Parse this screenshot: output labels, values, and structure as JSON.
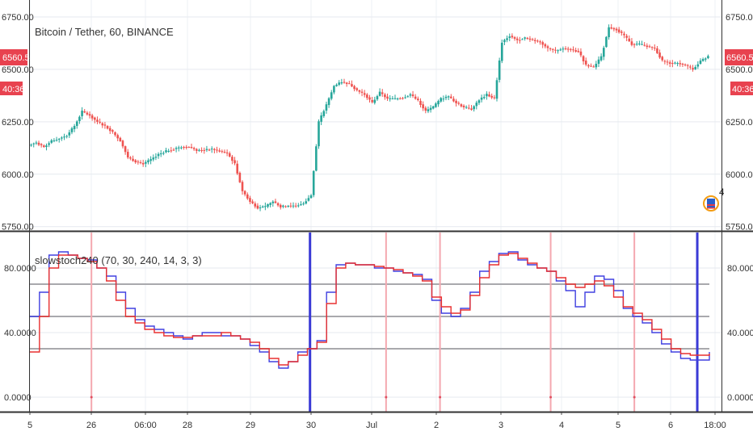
{
  "chart_data": [
    {
      "type": "candlestick",
      "title": "Bitcoin / Tether, 60, BINANCE",
      "ylim": [
        5730,
        6800
      ],
      "y_ticks": [
        "6750.00",
        "6500.00",
        "6250.00",
        "6000.00",
        "5750.00"
      ],
      "y_tick_values": [
        6750,
        6500,
        6250,
        6000,
        5750
      ],
      "last_price": "6560.52",
      "countdown": "40:36",
      "grid": true,
      "colors": {
        "up": "#26a69a",
        "down": "#ef5350",
        "tag": "#e8424f"
      },
      "close_series": [
        6150,
        6130,
        6160,
        6170,
        6185,
        6230,
        6300,
        6280,
        6250,
        6230,
        6200,
        6160,
        6080,
        6060,
        6050,
        6070,
        6095,
        6110,
        6120,
        6130,
        6130,
        6115,
        6115,
        6120,
        6110,
        6100,
        6050,
        5920,
        5870,
        5840,
        5845,
        5870,
        5845,
        5850,
        5850,
        5860,
        5900,
        6250,
        6330,
        6420,
        6440,
        6430,
        6400,
        6380,
        6340,
        6390,
        6360,
        6360,
        6365,
        6380,
        6350,
        6300,
        6320,
        6360,
        6370,
        6340,
        6320,
        6310,
        6355,
        6380,
        6360,
        6630,
        6660,
        6640,
        6650,
        6640,
        6630,
        6600,
        6590,
        6600,
        6595,
        6585,
        6520,
        6510,
        6560,
        6700,
        6690,
        6660,
        6620,
        6620,
        6610,
        6600,
        6540,
        6530,
        6530,
        6520,
        6500,
        6540,
        6560
      ]
    },
    {
      "type": "line",
      "title": "slowstoch240 (70, 30, 240, 14, 3, 3)",
      "ylim": [
        -5,
        100
      ],
      "y_ticks": [
        "80.0000",
        "40.0000",
        "0.0000"
      ],
      "y_tick_values": [
        80,
        40,
        0
      ],
      "levels": [
        70,
        50,
        30
      ],
      "x_ticks": [
        "5",
        "26",
        "06:00",
        "28",
        "29",
        "30",
        "Jul",
        "2",
        "3",
        "4",
        "5",
        "6",
        "18:00"
      ],
      "series": [
        {
          "color": "#4040e0",
          "values": [
            50,
            65,
            88,
            90,
            88,
            86,
            85,
            80,
            75,
            65,
            55,
            48,
            44,
            42,
            40,
            38,
            36,
            38,
            40,
            40,
            38,
            38,
            36,
            32,
            28,
            22,
            18,
            22,
            28,
            30,
            35,
            65,
            82,
            83,
            82,
            82,
            80,
            80,
            78,
            77,
            76,
            73,
            60,
            52,
            50,
            55,
            65,
            78,
            84,
            89,
            90,
            85,
            82,
            80,
            78,
            72,
            66,
            56,
            65,
            75,
            73,
            66,
            55,
            50,
            46,
            40,
            33,
            28,
            24,
            23,
            23,
            28
          ]
        },
        {
          "color": "#e83030",
          "values": [
            28,
            50,
            80,
            88,
            88,
            86,
            84,
            80,
            72,
            60,
            50,
            46,
            42,
            40,
            38,
            37,
            37,
            38,
            38,
            38,
            40,
            38,
            36,
            34,
            30,
            24,
            20,
            22,
            26,
            30,
            34,
            58,
            80,
            83,
            82,
            82,
            81,
            80,
            79,
            77,
            75,
            72,
            62,
            56,
            52,
            54,
            63,
            74,
            82,
            88,
            89,
            86,
            83,
            80,
            78,
            74,
            70,
            68,
            70,
            72,
            69,
            62,
            56,
            52,
            48,
            42,
            36,
            30,
            27,
            26,
            26,
            27
          ]
        }
      ],
      "markers": {
        "blue_verticals": [
          0.405,
          0.965
        ],
        "pink_verticals": [
          0.089,
          0.515,
          0.593,
          0.753,
          0.874
        ],
        "blue_color": "#3a3ad6",
        "pink_color": "#f4a8b0"
      }
    }
  ]
}
